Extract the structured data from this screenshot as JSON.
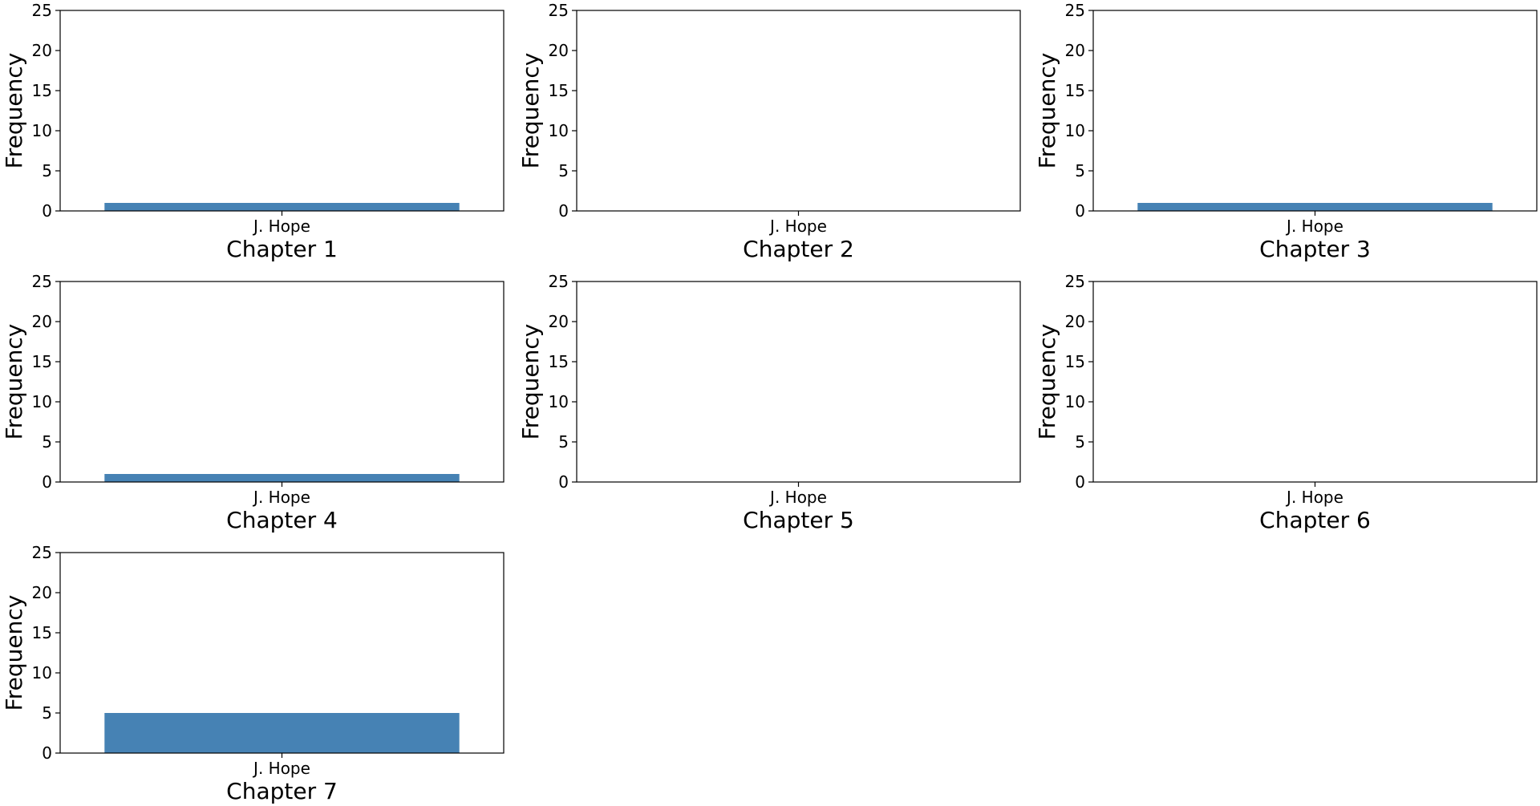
{
  "chart_data": [
    {
      "type": "bar",
      "title": "",
      "xlabel": "Chapter 1",
      "ylabel": "Frequency",
      "categories": [
        "J. Hope"
      ],
      "values": [
        1
      ],
      "ylim": [
        0,
        25
      ],
      "yticks": [
        0,
        5,
        10,
        15,
        20,
        25
      ],
      "grid": false,
      "bar_color": "#4682b4"
    },
    {
      "type": "bar",
      "title": "",
      "xlabel": "Chapter 2",
      "ylabel": "Frequency",
      "categories": [
        "J. Hope"
      ],
      "values": [
        0
      ],
      "ylim": [
        0,
        25
      ],
      "yticks": [
        0,
        5,
        10,
        15,
        20,
        25
      ],
      "grid": false,
      "bar_color": "#4682b4"
    },
    {
      "type": "bar",
      "title": "",
      "xlabel": "Chapter 3",
      "ylabel": "Frequency",
      "categories": [
        "J. Hope"
      ],
      "values": [
        1
      ],
      "ylim": [
        0,
        25
      ],
      "yticks": [
        0,
        5,
        10,
        15,
        20,
        25
      ],
      "grid": false,
      "bar_color": "#4682b4"
    },
    {
      "type": "bar",
      "title": "",
      "xlabel": "Chapter 4",
      "ylabel": "Frequency",
      "categories": [
        "J. Hope"
      ],
      "values": [
        1
      ],
      "ylim": [
        0,
        25
      ],
      "yticks": [
        0,
        5,
        10,
        15,
        20,
        25
      ],
      "grid": false,
      "bar_color": "#4682b4"
    },
    {
      "type": "bar",
      "title": "",
      "xlabel": "Chapter 5",
      "ylabel": "Frequency",
      "categories": [
        "J. Hope"
      ],
      "values": [
        0
      ],
      "ylim": [
        0,
        25
      ],
      "yticks": [
        0,
        5,
        10,
        15,
        20,
        25
      ],
      "grid": false,
      "bar_color": "#4682b4"
    },
    {
      "type": "bar",
      "title": "",
      "xlabel": "Chapter 6",
      "ylabel": "Frequency",
      "categories": [
        "J. Hope"
      ],
      "values": [
        0
      ],
      "ylim": [
        0,
        25
      ],
      "yticks": [
        0,
        5,
        10,
        15,
        20,
        25
      ],
      "grid": false,
      "bar_color": "#4682b4"
    },
    {
      "type": "bar",
      "title": "",
      "xlabel": "Chapter 7",
      "ylabel": "Frequency",
      "categories": [
        "J. Hope"
      ],
      "values": [
        5
      ],
      "ylim": [
        0,
        25
      ],
      "yticks": [
        0,
        5,
        10,
        15,
        20,
        25
      ],
      "grid": false,
      "bar_color": "#4682b4"
    }
  ]
}
